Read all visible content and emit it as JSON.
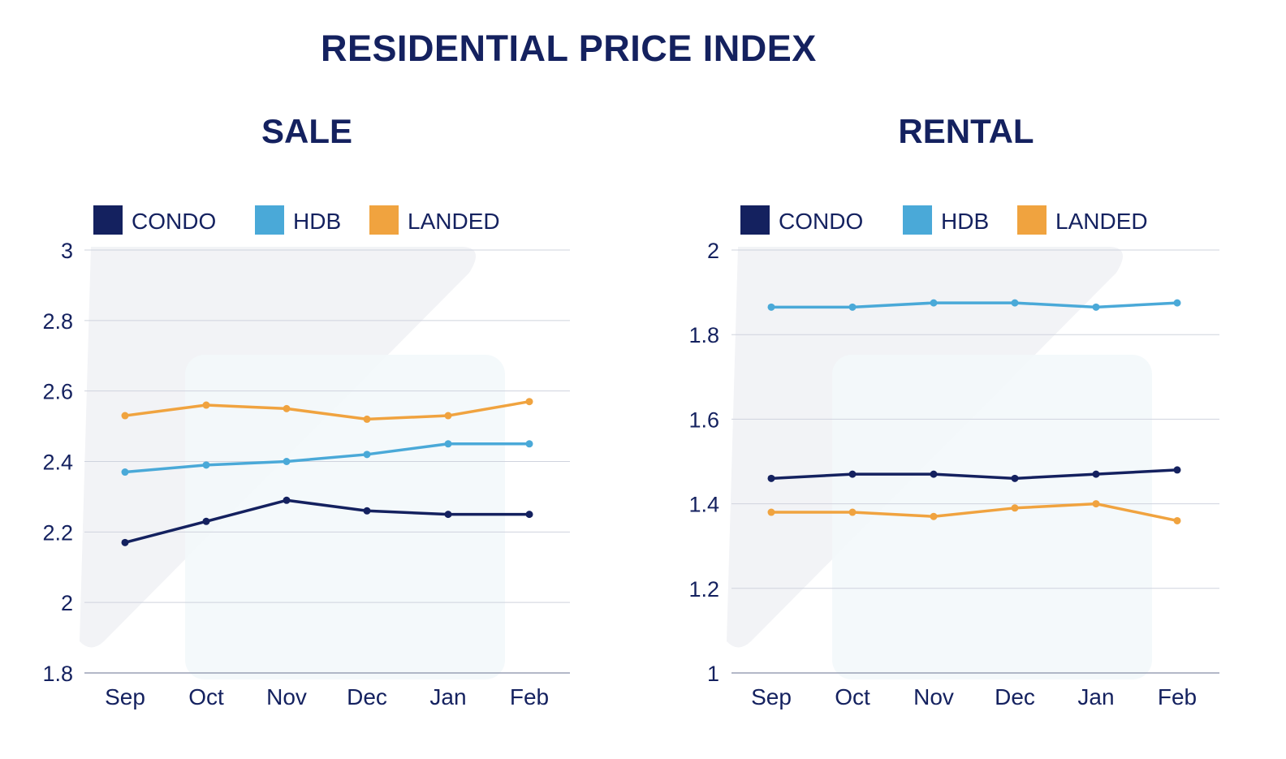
{
  "page": {
    "title": "RESIDENTIAL PRICE INDEX"
  },
  "colors": {
    "condo": "#14215f",
    "hdb": "#4aa9d8",
    "landed": "#f0a33f",
    "axis_text": "#14215f",
    "grid": "#cfd3de",
    "watermark_gray": "#f2f3f6",
    "watermark_blue": "#f3f8fb"
  },
  "chart_data": [
    {
      "type": "line",
      "title": "SALE",
      "categories": [
        "Sep",
        "Oct",
        "Nov",
        "Dec",
        "Jan",
        "Feb"
      ],
      "ylim": [
        1.8,
        3
      ],
      "yticks": [
        "1.8",
        "2",
        "2.2",
        "2.4",
        "2.6",
        "2.8",
        "3"
      ],
      "grid": true,
      "legend_position": "top-left",
      "series": [
        {
          "name": "CONDO",
          "color": "#14215f",
          "values": [
            2.17,
            2.23,
            2.29,
            2.26,
            2.25,
            2.25
          ]
        },
        {
          "name": "HDB",
          "color": "#4aa9d8",
          "values": [
            2.37,
            2.39,
            2.4,
            2.42,
            2.45,
            2.45
          ]
        },
        {
          "name": "LANDED",
          "color": "#f0a33f",
          "values": [
            2.53,
            2.56,
            2.55,
            2.52,
            2.53,
            2.57
          ]
        }
      ]
    },
    {
      "type": "line",
      "title": "RENTAL",
      "categories": [
        "Sep",
        "Oct",
        "Nov",
        "Dec",
        "Jan",
        "Feb"
      ],
      "ylim": [
        1,
        2
      ],
      "yticks": [
        "1",
        "1.2",
        "1.4",
        "1.6",
        "1.8",
        "2"
      ],
      "grid": true,
      "legend_position": "top-left",
      "series": [
        {
          "name": "CONDO",
          "color": "#14215f",
          "values": [
            1.46,
            1.47,
            1.47,
            1.46,
            1.47,
            1.48
          ]
        },
        {
          "name": "HDB",
          "color": "#4aa9d8",
          "values": [
            1.865,
            1.865,
            1.875,
            1.875,
            1.865,
            1.875
          ]
        },
        {
          "name": "LANDED",
          "color": "#f0a33f",
          "values": [
            1.38,
            1.38,
            1.37,
            1.39,
            1.4,
            1.36
          ]
        }
      ]
    }
  ]
}
